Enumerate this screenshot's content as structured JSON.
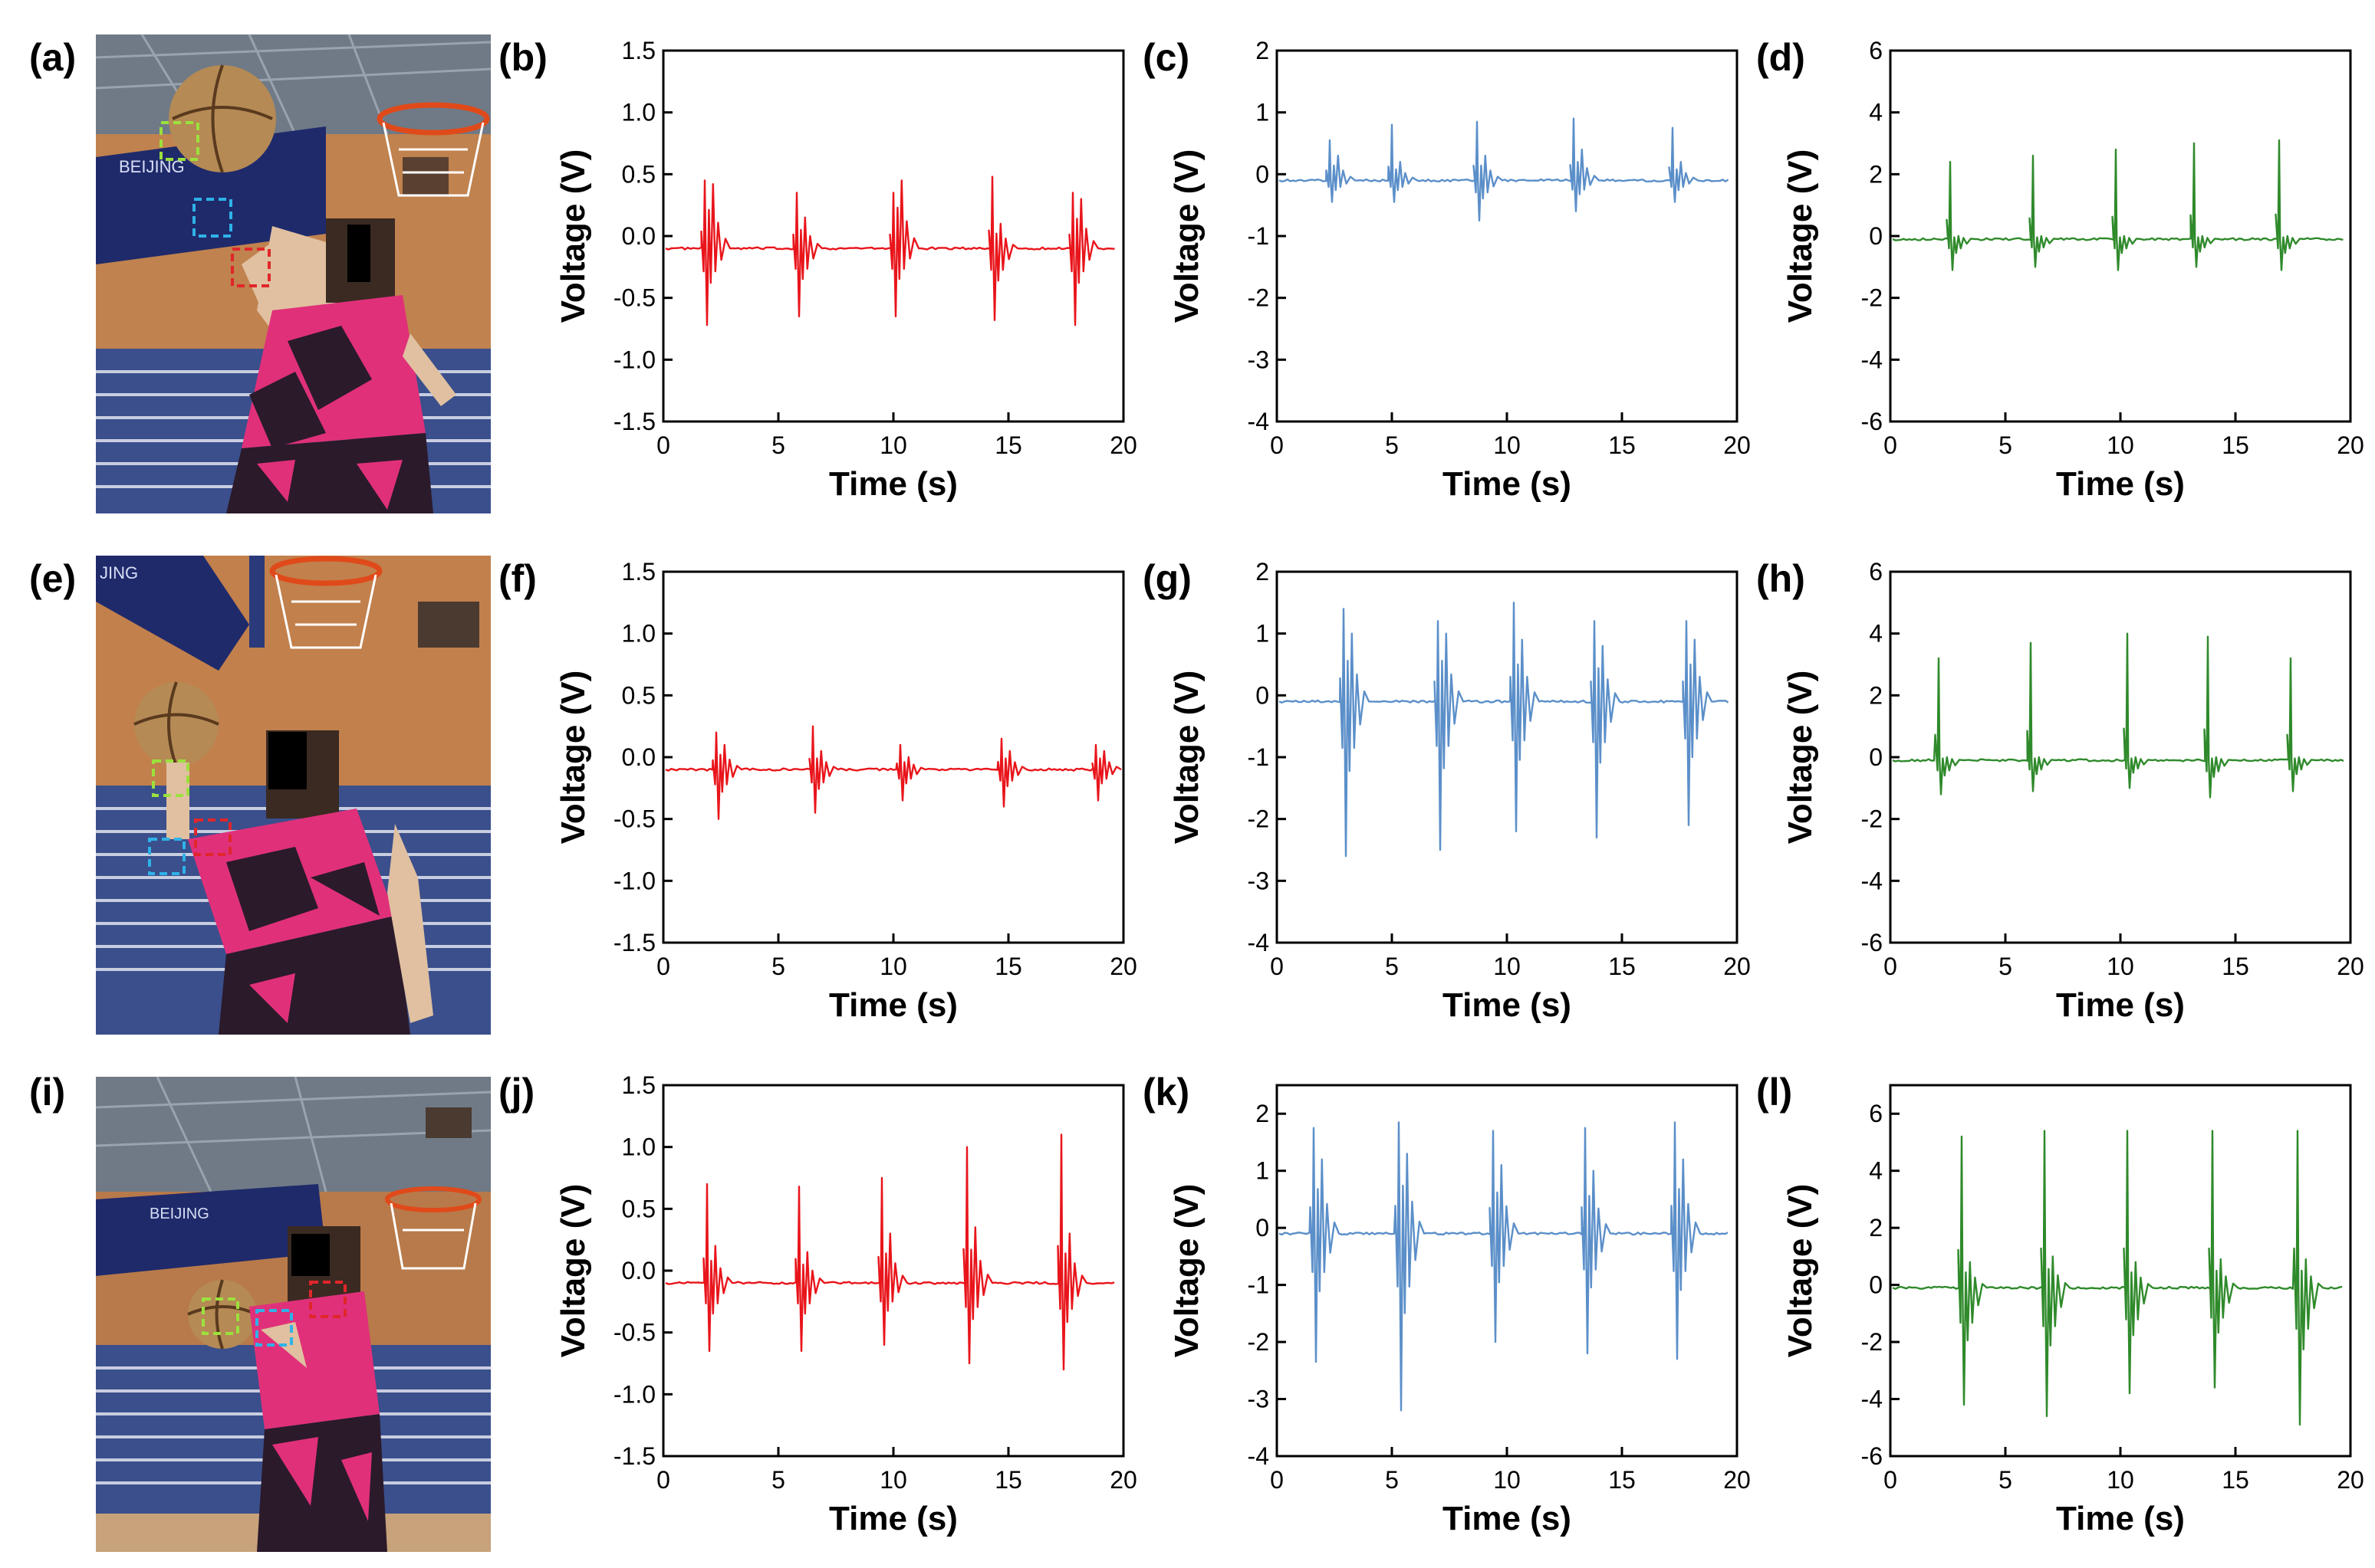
{
  "panel_labels": {
    "a": "(a)",
    "b": "(b)",
    "c": "(c)",
    "d": "(d)",
    "e": "(e)",
    "f": "(f)",
    "g": "(g)",
    "h": "(h)",
    "i": "(i)",
    "j": "(j)",
    "k": "(k)",
    "l": "(l)"
  },
  "photos": [
    {
      "label": "a",
      "backboard_text": "BEIJING",
      "marker_colors": [
        "#9be13c",
        "#2fb2e8",
        "#e0262a"
      ]
    },
    {
      "label": "e",
      "backboard_text": "JING",
      "marker_colors": [
        "#9be13c",
        "#2fb2e8",
        "#e0262a"
      ]
    },
    {
      "label": "i",
      "backboard_text": "BEIJING",
      "marker_colors": [
        "#9be13c",
        "#2fb2e8",
        "#e0262a"
      ]
    }
  ],
  "chart_data": [
    {
      "id": "b",
      "type": "line",
      "color": "#e8151b",
      "xlabel": "Time (s)",
      "ylabel": "Voltage (V)",
      "xlim": [
        0,
        20
      ],
      "ylim": [
        -1.5,
        1.5
      ],
      "xticks": [
        0,
        5,
        10,
        15,
        20
      ],
      "yticks": [
        "-1.5",
        "-1.0",
        "-0.5",
        "0.0",
        "0.5",
        "1.0",
        "1.5"
      ],
      "baseline": -0.1,
      "events": [
        {
          "t": 1.8,
          "peak": 0.45,
          "trough": -0.72,
          "peak2": 0.42
        },
        {
          "t": 5.8,
          "peak": 0.35,
          "trough": -0.65,
          "peak2": 0.15
        },
        {
          "t": 10.0,
          "peak": 0.35,
          "trough": -0.65,
          "peak2": 0.45
        },
        {
          "t": 14.3,
          "peak": 0.48,
          "trough": -0.68,
          "peak2": 0.1
        },
        {
          "t": 17.8,
          "peak": 0.35,
          "trough": -0.72,
          "peak2": 0.3
        }
      ]
    },
    {
      "id": "c",
      "type": "line",
      "color": "#5b8fc9",
      "xlabel": "Time (s)",
      "ylabel": "Voltage (V)",
      "xlim": [
        0,
        20
      ],
      "ylim": [
        -4,
        2
      ],
      "xticks": [
        0,
        5,
        10,
        15,
        20
      ],
      "yticks": [
        "-4",
        "-3",
        "-2",
        "-1",
        "0",
        "1",
        "2"
      ],
      "baseline": -0.1,
      "events": [
        {
          "t": 2.3,
          "peak": 0.55,
          "trough": -0.45,
          "peak2": 0.3
        },
        {
          "t": 5.0,
          "peak": 0.8,
          "trough": -0.45,
          "peak2": 0.2
        },
        {
          "t": 8.7,
          "peak": 0.85,
          "trough": -0.75,
          "peak2": 0.3
        },
        {
          "t": 12.9,
          "peak": 0.9,
          "trough": -0.6,
          "peak2": 0.4
        },
        {
          "t": 17.2,
          "peak": 0.75,
          "trough": -0.45,
          "peak2": 0.2
        }
      ]
    },
    {
      "id": "d",
      "type": "line",
      "color": "#2f8a2b",
      "xlabel": "Time (s)",
      "ylabel": "Voltage (V)",
      "xlim": [
        0,
        20
      ],
      "ylim": [
        -6,
        6
      ],
      "xticks": [
        0,
        5,
        10,
        15,
        20
      ],
      "yticks": [
        "-6",
        "-4",
        "-2",
        "0",
        "2",
        "4",
        "6"
      ],
      "baseline": -0.1,
      "events": [
        {
          "t": 2.6,
          "peak": 2.4,
          "trough": -1.1,
          "peak2": 0
        },
        {
          "t": 6.2,
          "peak": 2.6,
          "trough": -1.0,
          "peak2": 0
        },
        {
          "t": 9.8,
          "peak": 2.8,
          "trough": -1.1,
          "peak2": 0
        },
        {
          "t": 13.2,
          "peak": 3.0,
          "trough": -1.0,
          "peak2": 0
        },
        {
          "t": 16.9,
          "peak": 3.1,
          "trough": -1.1,
          "peak2": 0
        }
      ]
    },
    {
      "id": "f",
      "type": "line",
      "color": "#e8151b",
      "xlabel": "Time (s)",
      "ylabel": "Voltage (V)",
      "xlim": [
        0,
        20
      ],
      "ylim": [
        -1.5,
        1.5
      ],
      "xticks": [
        0,
        5,
        10,
        15,
        20
      ],
      "yticks": [
        "-1.5",
        "-1.0",
        "-0.5",
        "0.0",
        "0.5",
        "1.0",
        "1.5"
      ],
      "baseline": -0.1,
      "events": [
        {
          "t": 2.3,
          "peak": 0.2,
          "trough": -0.5,
          "peak2": 0.1
        },
        {
          "t": 6.5,
          "peak": 0.25,
          "trough": -0.45,
          "peak2": 0.05
        },
        {
          "t": 10.3,
          "peak": 0.1,
          "trough": -0.35,
          "peak2": 0.0
        },
        {
          "t": 14.7,
          "peak": 0.15,
          "trough": -0.4,
          "peak2": 0.05
        },
        {
          "t": 18.8,
          "peak": 0.1,
          "trough": -0.35,
          "peak2": 0.05
        }
      ]
    },
    {
      "id": "g",
      "type": "line",
      "color": "#5b8fc9",
      "xlabel": "Time (s)",
      "ylabel": "Voltage (V)",
      "xlim": [
        0,
        20
      ],
      "ylim": [
        -4,
        2
      ],
      "xticks": [
        0,
        5,
        10,
        15,
        20
      ],
      "yticks": [
        "-4",
        "-3",
        "-2",
        "-1",
        "0",
        "1",
        "2"
      ],
      "baseline": -0.1,
      "events": [
        {
          "t": 2.9,
          "peak": 1.4,
          "trough": -2.6,
          "peak2": 1.0
        },
        {
          "t": 7.0,
          "peak": 1.2,
          "trough": -2.5,
          "peak2": 1.0
        },
        {
          "t": 10.3,
          "peak": 1.5,
          "trough": -2.2,
          "peak2": 0.9
        },
        {
          "t": 13.8,
          "peak": 1.2,
          "trough": -2.3,
          "peak2": 0.8
        },
        {
          "t": 17.8,
          "peak": 1.2,
          "trough": -2.1,
          "peak2": 0.9
        }
      ]
    },
    {
      "id": "h",
      "type": "line",
      "color": "#2f8a2b",
      "xlabel": "Time (s)",
      "ylabel": "Voltage (V)",
      "xlim": [
        0,
        20
      ],
      "ylim": [
        -6,
        6
      ],
      "xticks": [
        0,
        5,
        10,
        15,
        20
      ],
      "yticks": [
        "-6",
        "-4",
        "-2",
        "0",
        "2",
        "4",
        "6"
      ],
      "baseline": -0.1,
      "events": [
        {
          "t": 2.1,
          "peak": 3.2,
          "trough": -1.2,
          "peak2": 0
        },
        {
          "t": 6.1,
          "peak": 3.7,
          "trough": -1.1,
          "peak2": 0
        },
        {
          "t": 10.3,
          "peak": 4.0,
          "trough": -1.0,
          "peak2": 0
        },
        {
          "t": 13.8,
          "peak": 3.9,
          "trough": -1.3,
          "peak2": 0
        },
        {
          "t": 17.4,
          "peak": 3.2,
          "trough": -1.1,
          "peak2": 0
        }
      ]
    },
    {
      "id": "j",
      "type": "line",
      "color": "#e8151b",
      "xlabel": "Time (s)",
      "ylabel": "Voltage (V)",
      "xlim": [
        0,
        20
      ],
      "ylim": [
        -1.5,
        1.5
      ],
      "xticks": [
        0,
        5,
        10,
        15,
        20
      ],
      "yticks": [
        "-1.5",
        "-1.0",
        "-0.5",
        "0.0",
        "0.5",
        "1.0",
        "1.5"
      ],
      "baseline": -0.1,
      "events": [
        {
          "t": 1.9,
          "peak": 0.7,
          "trough": -0.65,
          "peak2": 0.2
        },
        {
          "t": 5.9,
          "peak": 0.68,
          "trough": -0.65,
          "peak2": 0.15
        },
        {
          "t": 9.5,
          "peak": 0.75,
          "trough": -0.6,
          "peak2": 0.3
        },
        {
          "t": 13.2,
          "peak": 1.0,
          "trough": -0.75,
          "peak2": 0.35
        },
        {
          "t": 17.3,
          "peak": 1.1,
          "trough": -0.8,
          "peak2": 0.3
        }
      ]
    },
    {
      "id": "k",
      "type": "line",
      "color": "#5b8fc9",
      "xlabel": "Time (s)",
      "ylabel": "Voltage (V)",
      "xlim": [
        0,
        20
      ],
      "ylim": [
        -4,
        2.5
      ],
      "xticks": [
        0,
        5,
        10,
        15,
        20
      ],
      "yticks": [
        "-4",
        "-3",
        "-2",
        "-1",
        "0",
        "1",
        "2"
      ],
      "baseline": -0.1,
      "events": [
        {
          "t": 1.6,
          "peak": 1.75,
          "trough": -2.35,
          "peak2": 1.2
        },
        {
          "t": 5.3,
          "peak": 1.85,
          "trough": -3.2,
          "peak2": 1.3
        },
        {
          "t": 9.4,
          "peak": 1.7,
          "trough": -2.0,
          "peak2": 1.1
        },
        {
          "t": 13.4,
          "peak": 1.75,
          "trough": -2.2,
          "peak2": 1.0
        },
        {
          "t": 17.3,
          "peak": 1.85,
          "trough": -2.3,
          "peak2": 1.2
        }
      ]
    },
    {
      "id": "l",
      "type": "line",
      "color": "#2f8a2b",
      "xlabel": "Time (s)",
      "ylabel": "Voltage (V)",
      "xlim": [
        0,
        20
      ],
      "ylim": [
        -6,
        7
      ],
      "xticks": [
        0,
        5,
        10,
        15,
        20
      ],
      "yticks": [
        "-6",
        "-4",
        "-2",
        "0",
        "2",
        "4",
        "6"
      ],
      "baseline": -0.1,
      "events": [
        {
          "t": 3.1,
          "peak": 5.2,
          "trough": -4.2,
          "peak2": 0.8
        },
        {
          "t": 6.7,
          "peak": 5.4,
          "trough": -4.6,
          "peak2": 1.0
        },
        {
          "t": 10.3,
          "peak": 5.4,
          "trough": -3.8,
          "peak2": 0.8
        },
        {
          "t": 14.0,
          "peak": 5.4,
          "trough": -3.6,
          "peak2": 0.9
        },
        {
          "t": 17.7,
          "peak": 5.4,
          "trough": -4.9,
          "peak2": 0.9
        }
      ]
    }
  ]
}
